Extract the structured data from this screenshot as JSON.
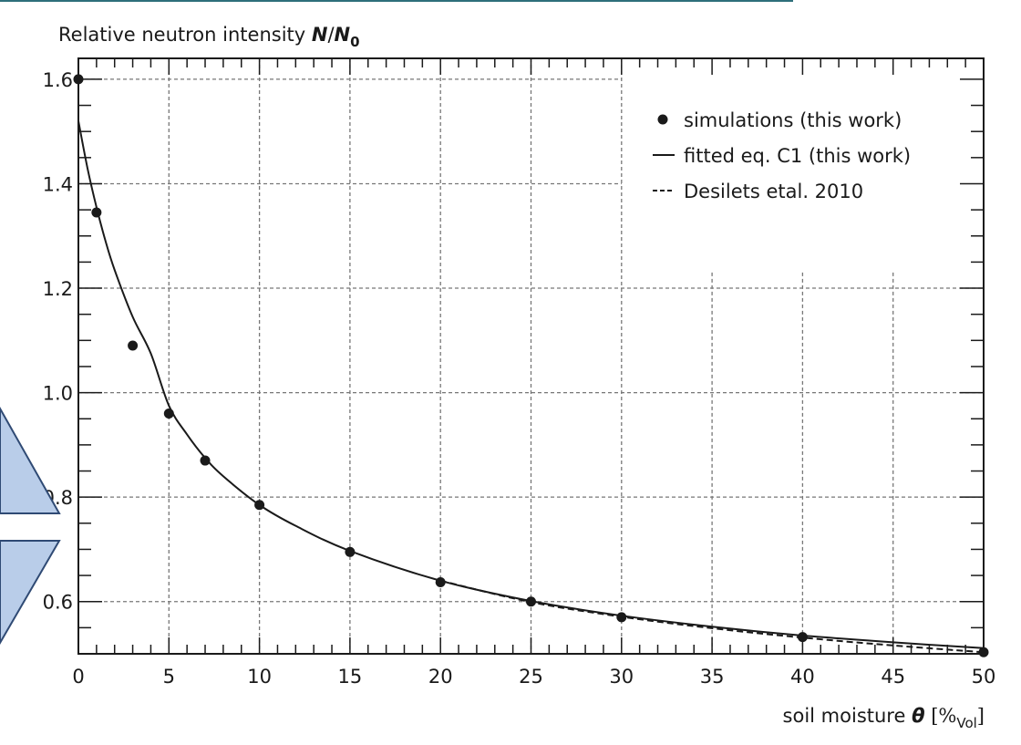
{
  "chart_data": {
    "type": "scatter",
    "title": "",
    "ylabel": {
      "prefix": "Relative neutron intensity ",
      "num": "N",
      "slash": "/",
      "den": "N",
      "den_sub": "0"
    },
    "xlabel": {
      "prefix": "soil moisture ",
      "symbol": "θ",
      "unit_open": " [%",
      "unit_sub": "Vol",
      "unit_close": "]"
    },
    "xlim": [
      0,
      50
    ],
    "ylim": [
      0.5,
      1.64
    ],
    "x_ticks": [
      0,
      5,
      10,
      15,
      20,
      25,
      30,
      35,
      40,
      45,
      50
    ],
    "x_tick_labels": [
      "0",
      "5",
      "10",
      "15",
      "20",
      "25",
      "30",
      "35",
      "40",
      "45",
      "50"
    ],
    "y_ticks": [
      0.6,
      0.8,
      1.0,
      1.2,
      1.4,
      1.6
    ],
    "y_tick_labels": [
      "0.6",
      "0.8",
      "1.0",
      "1.2",
      "1.4",
      "1.6"
    ],
    "grid": true,
    "legend_position": "top-right",
    "series": [
      {
        "name": "simulations (this work)",
        "kind": "points",
        "color": "#1a1a1a",
        "x": [
          0,
          1,
          3,
          5,
          7,
          10,
          15,
          20,
          25,
          30,
          40,
          50
        ],
        "y": [
          1.6,
          1.345,
          1.09,
          0.96,
          0.87,
          0.785,
          0.695,
          0.637,
          0.6,
          0.57,
          0.532,
          0.503
        ]
      },
      {
        "name": "fitted eq. C1 (this work)",
        "kind": "line",
        "style": "solid",
        "color": "#1a1a1a",
        "x": [
          0,
          0.5,
          1,
          1.5,
          2,
          3,
          4,
          5,
          6,
          7,
          8,
          10,
          12,
          15,
          20,
          25,
          30,
          35,
          40,
          45,
          50
        ],
        "y": [
          1.52,
          1.43,
          1.355,
          1.29,
          1.235,
          1.145,
          1.075,
          0.975,
          0.92,
          0.875,
          0.84,
          0.785,
          0.745,
          0.697,
          0.64,
          0.601,
          0.573,
          0.552,
          0.535,
          0.522,
          0.511
        ]
      },
      {
        "name": "Desilets etal. 2010",
        "kind": "line",
        "style": "dashed",
        "color": "#1a1a1a",
        "x": [
          20,
          25,
          30,
          35,
          40,
          45,
          50
        ],
        "y": [
          0.64,
          0.599,
          0.571,
          0.549,
          0.531,
          0.516,
          0.503
        ]
      }
    ]
  }
}
